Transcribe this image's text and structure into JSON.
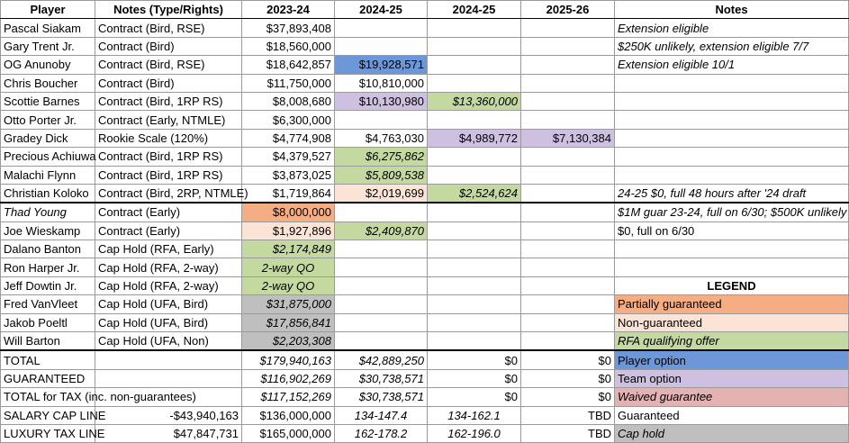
{
  "table": {
    "rows": [
      [
        "Player",
        "Notes (Type/Rights)",
        "2023-24",
        "2024-25",
        "2024-25",
        "2025-26",
        "Notes"
      ],
      [
        "Pascal Siakam",
        "Contract (Bird, RSE)",
        "$37,893,408",
        null,
        null,
        null,
        "Extension eligible"
      ],
      [
        "Gary Trent Jr.",
        "Contract (Bird)",
        "$18,560,000",
        null,
        null,
        null,
        "$250K unlikely, extension eligible 7/7"
      ],
      [
        "OG Anunoby",
        "Contract (Bird, RSE)",
        "$18,642,857",
        "$19,928,571",
        null,
        null,
        "Extension eligible 10/1"
      ],
      [
        "Chris Boucher",
        "Contract (Bird)",
        "$11,750,000",
        "$10,810,000",
        null,
        null,
        null
      ],
      [
        "Scottie Barnes",
        "Contract (Bird, 1RP RS)",
        "$8,008,680",
        "$10,130,980",
        "$13,360,000",
        null,
        null
      ],
      [
        "Otto Porter Jr.",
        "Contract (Early, NTMLE)",
        "$6,300,000",
        null,
        null,
        null,
        null
      ],
      [
        "Gradey Dick",
        "Rookie Scale (120%)",
        "$4,774,908",
        "$4,763,030",
        "$4,989,772",
        "$7,130,384",
        null
      ],
      [
        "Precious Achiuwa",
        "Contract (Bird, 1RP RS)",
        "$4,379,527",
        "$6,275,862",
        null,
        null,
        null
      ],
      [
        "Malachi Flynn",
        "Contract (Bird, 1RP RS)",
        "$3,873,025",
        "$5,809,538",
        null,
        null,
        null
      ],
      [
        "Christian Koloko",
        "Contract (Bird, 2RP, NTMLE)",
        "$1,719,864",
        "$2,019,699",
        "$2,524,624",
        null,
        "24-25 $0,  full 48 hours after '24 draft"
      ],
      [
        "Thad Young",
        "Contract (Early)",
        "$8,000,000",
        null,
        null,
        null,
        "$1M guar 23-24, full on 6/30; $500K unlikely"
      ],
      [
        "Joe Wieskamp",
        "Contract (Early)",
        "$1,927,896",
        "$2,409,870",
        null,
        null,
        "$0, full on 6/30"
      ],
      [
        "Dalano Banton",
        "Cap Hold (RFA, Early)",
        "$2,174,849",
        null,
        null,
        null,
        null
      ],
      [
        "Ron Harper Jr.",
        "Cap Hold (RFA, 2-way)",
        "2-way QO",
        null,
        null,
        null,
        null
      ],
      [
        "Jeff Dowtin Jr.",
        "Cap Hold (RFA, 2-way)",
        "2-way QO",
        null,
        null,
        null,
        "LEGEND"
      ],
      [
        "Fred VanVleet",
        "Cap Hold (UFA, Bird)",
        "$31,875,000",
        null,
        null,
        null,
        "Partially guaranteed"
      ],
      [
        "Jakob Poeltl",
        "Cap Hold (UFA, Bird)",
        "$17,856,841",
        null,
        null,
        null,
        "Non-guaranteed"
      ],
      [
        "Will Barton",
        "Cap Hold (UFA, Non)",
        "$2,203,308",
        null,
        null,
        null,
        "RFA qualifying offer"
      ],
      [
        "TOTAL",
        null,
        "$179,940,163",
        "$42,889,250",
        "$0",
        "$0",
        "Player option"
      ],
      [
        "GUARANTEED",
        null,
        "$116,902,269",
        "$30,738,571",
        "$0",
        "$0",
        "Team option"
      ],
      [
        "TOTAL for TAX (inc. non-guarantees)",
        null,
        "$117,152,269",
        "$30,738,571",
        "$0",
        "$0",
        "Waived guarantee"
      ],
      [
        "SALARY CAP LINE",
        "-$43,940,163",
        "$136,000,000",
        "134-147.4",
        "134-162.1",
        "TBD",
        "Guaranteed"
      ],
      [
        "LUXURY TAX LINE",
        "$47,847,731",
        "$165,000,000",
        "162-178.2",
        "162-196.0",
        "TBD",
        "Cap hold"
      ]
    ]
  }
}
